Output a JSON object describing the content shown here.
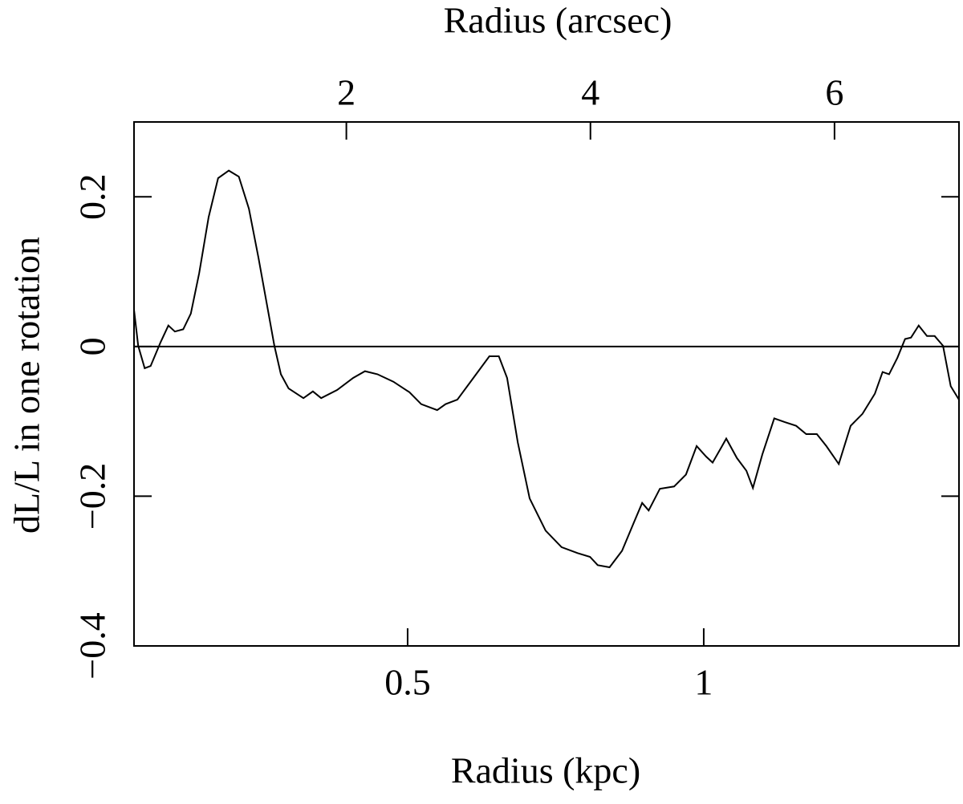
{
  "chart_data": {
    "type": "line",
    "xlabel": "Radius (kpc)",
    "x2label": "Radius (arcsec)",
    "ylabel": "dL/L in one rotation",
    "xlim": [
      0.038,
      1.431
    ],
    "xticks": [
      0.5,
      1
    ],
    "x2lim": [
      0.26,
      7.02
    ],
    "x2ticks": [
      2,
      4,
      6
    ],
    "ylim": [
      -0.4,
      0.3
    ],
    "yticks": [
      {
        "value": -0.4,
        "label": "−0.4"
      },
      {
        "value": -0.2,
        "label": "−0.2"
      },
      0,
      0.2
    ],
    "hline": 0,
    "series": [
      {
        "color": "#000000",
        "x": [
          0.038,
          0.045,
          0.056,
          0.066,
          0.083,
          0.096,
          0.107,
          0.121,
          0.134,
          0.148,
          0.164,
          0.18,
          0.198,
          0.215,
          0.232,
          0.248,
          0.264,
          0.275,
          0.286,
          0.299,
          0.324,
          0.34,
          0.354,
          0.381,
          0.408,
          0.428,
          0.449,
          0.476,
          0.503,
          0.523,
          0.55,
          0.564,
          0.584,
          0.611,
          0.638,
          0.654,
          0.668,
          0.686,
          0.706,
          0.733,
          0.76,
          0.787,
          0.808,
          0.821,
          0.841,
          0.862,
          0.882,
          0.896,
          0.907,
          0.926,
          0.95,
          0.97,
          0.988,
          1.004,
          1.015,
          1.031,
          1.038,
          1.056,
          1.072,
          1.083,
          1.099,
          1.119,
          1.137,
          1.156,
          1.173,
          1.191,
          1.207,
          1.228,
          1.248,
          1.268,
          1.289,
          1.302,
          1.313,
          1.327,
          1.34,
          1.35,
          1.363,
          1.377,
          1.39,
          1.404,
          1.417,
          1.431
        ],
        "values": [
          0.049,
          0.001,
          -0.029,
          -0.026,
          0.006,
          0.028,
          0.02,
          0.023,
          0.044,
          0.098,
          0.173,
          0.225,
          0.235,
          0.227,
          0.184,
          0.119,
          0.049,
          0.001,
          -0.037,
          -0.056,
          -0.069,
          -0.06,
          -0.069,
          -0.058,
          -0.042,
          -0.033,
          -0.037,
          -0.047,
          -0.061,
          -0.077,
          -0.085,
          -0.077,
          -0.071,
          -0.042,
          -0.013,
          -0.013,
          -0.042,
          -0.128,
          -0.203,
          -0.246,
          -0.268,
          -0.276,
          -0.281,
          -0.292,
          -0.295,
          -0.273,
          -0.235,
          -0.209,
          -0.219,
          -0.19,
          -0.187,
          -0.171,
          -0.133,
          -0.147,
          -0.155,
          -0.133,
          -0.123,
          -0.149,
          -0.166,
          -0.189,
          -0.144,
          -0.096,
          -0.101,
          -0.106,
          -0.117,
          -0.117,
          -0.133,
          -0.157,
          -0.106,
          -0.09,
          -0.063,
          -0.034,
          -0.037,
          -0.015,
          0.01,
          0.012,
          0.028,
          0.014,
          0.014,
          0.001,
          -0.053,
          -0.071
        ]
      }
    ]
  }
}
